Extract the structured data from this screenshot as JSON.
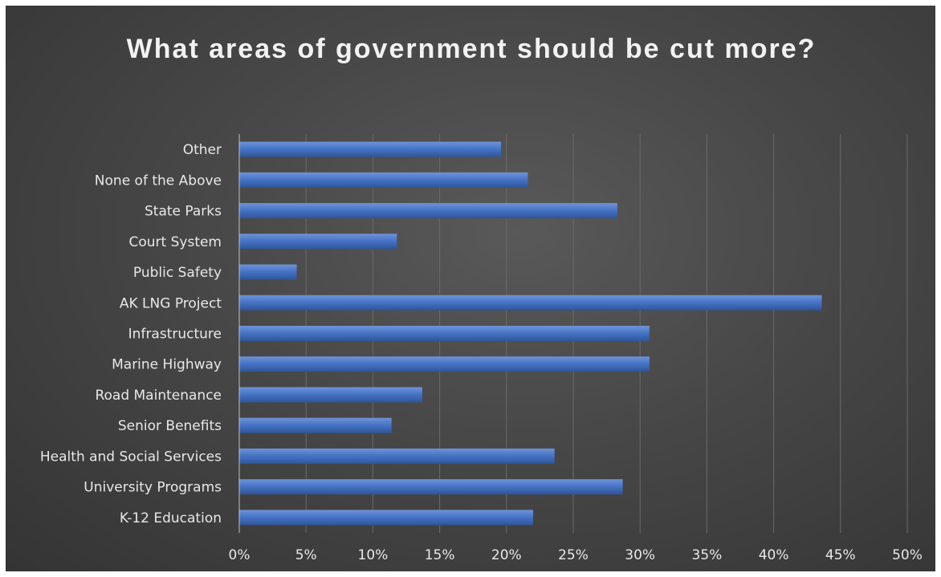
{
  "chart_data": {
    "type": "bar",
    "orientation": "horizontal",
    "title": "What areas of government should be cut more?",
    "categories": [
      "Other",
      "None of the Above",
      "State Parks",
      "Court System",
      "Public Safety",
      "AK LNG Project",
      "Infrastructure",
      "Marine Highway",
      "Road Maintenance",
      "Senior Benefits",
      "Health and Social Services",
      "University Programs",
      "K-12 Education"
    ],
    "values": [
      0.196,
      0.216,
      0.283,
      0.118,
      0.043,
      0.436,
      0.307,
      0.307,
      0.137,
      0.114,
      0.236,
      0.287,
      0.22
    ],
    "xlim": [
      0,
      0.5
    ],
    "xticks": [
      0,
      0.05,
      0.1,
      0.15,
      0.2,
      0.25,
      0.3,
      0.35,
      0.4,
      0.45,
      0.5
    ],
    "xtick_labels": [
      "0%",
      "5%",
      "10%",
      "15%",
      "20%",
      "25%",
      "30%",
      "35%",
      "40%",
      "45%",
      "50%"
    ],
    "grid": "vertical",
    "bar_color": "#4472c4",
    "background_color": "#404040"
  }
}
